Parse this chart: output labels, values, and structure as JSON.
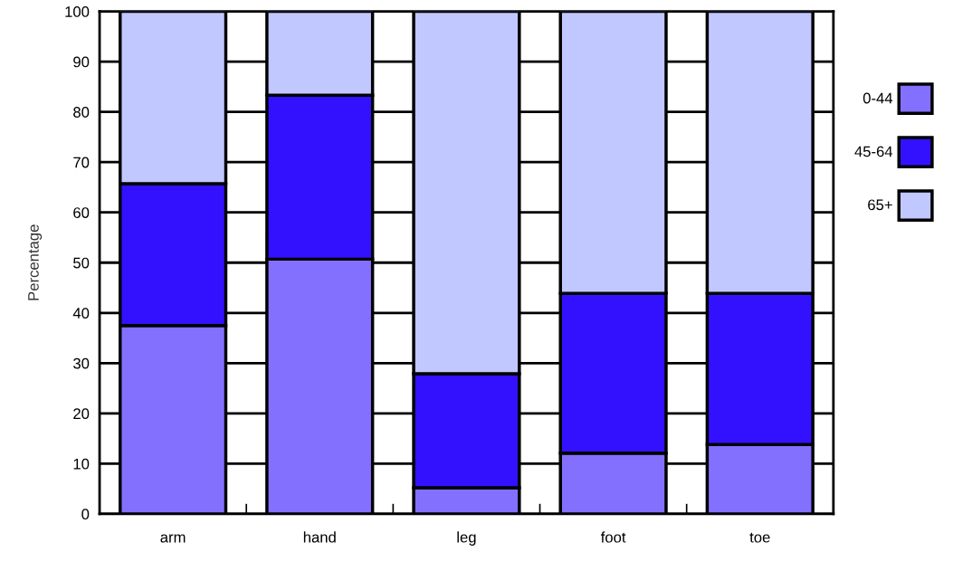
{
  "chart_data": {
    "type": "bar",
    "stacked": true,
    "ylabel": "Percentage",
    "categories": [
      "arm",
      "hand",
      "leg",
      "foot",
      "toe"
    ],
    "series": [
      {
        "name": "0-44",
        "color": "#8470ff",
        "values": [
          37.5,
          50.7,
          5.2,
          12.1,
          13.8
        ]
      },
      {
        "name": "45-64",
        "color": "#3311ff",
        "values": [
          28.2,
          32.6,
          22.7,
          31.8,
          30.1
        ]
      },
      {
        "name": "65+",
        "color": "#c0c8ff",
        "values": [
          34.3,
          16.7,
          72.1,
          56.1,
          56.1
        ]
      }
    ],
    "ylim": [
      0,
      100
    ],
    "yticks": [
      0,
      10,
      20,
      30,
      40,
      50,
      60,
      70,
      80,
      90,
      100
    ],
    "grid": "y",
    "legend": "right"
  }
}
